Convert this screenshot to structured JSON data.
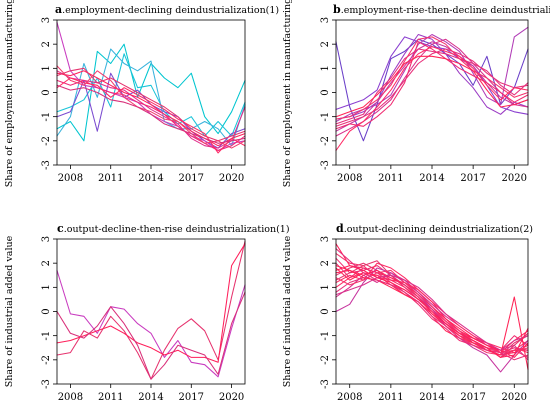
{
  "chart_data": [
    {
      "type": "line",
      "letter": "a",
      "title": ".employment-declining deindustrialization(1)",
      "ylabel": "Share of employment in manufacturing",
      "xticks": [
        "2008",
        "2011",
        "2014",
        "2017",
        "2020"
      ],
      "yticks": [
        "-3",
        "-2",
        "-1",
        "0",
        "1",
        "2",
        "3"
      ],
      "xlim": [
        2007,
        2021
      ],
      "ylim": [
        -3,
        3
      ],
      "x": [
        2007,
        2008,
        2009,
        2010,
        2011,
        2012,
        2013,
        2014,
        2015,
        2016,
        2017,
        2018,
        2019,
        2020,
        2021
      ],
      "series": [
        {
          "color": "#00c5cf",
          "values": [
            -1.5,
            -1.2,
            -2.0,
            1.7,
            1.2,
            2.0,
            -0.2,
            1.2,
            0.6,
            0.2,
            0.8,
            -1.0,
            -1.7,
            -0.8,
            0.5
          ]
        },
        {
          "color": "#19c4d8",
          "values": [
            -0.8,
            -0.6,
            -0.3,
            0.6,
            -0.6,
            1.6,
            0.2,
            0.3,
            -0.8,
            -1.3,
            -1.0,
            -1.8,
            -1.2,
            -1.8,
            -0.4
          ]
        },
        {
          "color": "#3ab3dc",
          "values": [
            -1.8,
            -1.0,
            1.2,
            -0.2,
            1.8,
            1.2,
            0.9,
            1.3,
            -1.2,
            -1.5,
            -1.5,
            -1.2,
            -1.5,
            -2.2,
            -0.5
          ]
        },
        {
          "color": "#7a4bd0",
          "values": [
            -1.0,
            -0.8,
            0.5,
            -1.6,
            0.8,
            -0.2,
            0.1,
            -0.5,
            -0.8,
            -1.0,
            -1.6,
            -2.0,
            -2.3,
            -1.7,
            -1.5
          ]
        },
        {
          "color": "#c93cc0",
          "values": [
            2.9,
            0.9,
            0.3,
            0.2,
            0.0,
            -0.2,
            -0.4,
            -0.9,
            -1.2,
            -1.4,
            -1.8,
            -2.0,
            -2.4,
            -2.1,
            -2.0
          ]
        },
        {
          "color": "#e0308c",
          "values": [
            0.9,
            0.6,
            0.5,
            0.4,
            0.2,
            0.1,
            -0.3,
            -0.7,
            -1.0,
            -1.3,
            -1.9,
            -2.2,
            -2.3,
            -2.0,
            -0.6
          ]
        },
        {
          "color": "#ff1f5a",
          "values": [
            0.8,
            0.7,
            0.9,
            0.6,
            0.3,
            0.0,
            -0.2,
            -0.5,
            -0.9,
            -1.2,
            -1.6,
            -1.9,
            -2.2,
            -1.9,
            -1.7
          ]
        },
        {
          "color": "#f0287a",
          "values": [
            0.5,
            0.3,
            0.5,
            0.2,
            0.0,
            -0.1,
            -0.4,
            -0.6,
            -0.9,
            -1.4,
            -1.8,
            -2.1,
            -2.4,
            -2.2,
            -1.8
          ]
        },
        {
          "color": "#e6336e",
          "values": [
            0.7,
            0.9,
            1.0,
            0.4,
            0.6,
            0.3,
            0.0,
            -0.3,
            -0.6,
            -1.0,
            -1.5,
            -1.8,
            -2.0,
            -1.8,
            -1.6
          ]
        },
        {
          "color": "#ff2a64",
          "values": [
            0.2,
            0.6,
            0.4,
            0.3,
            -0.2,
            0.2,
            -0.1,
            -0.4,
            -0.7,
            -1.1,
            -1.4,
            -1.7,
            -2.5,
            -1.9,
            -2.2
          ]
        },
        {
          "color": "#f23c6e",
          "values": [
            1.1,
            0.5,
            0.3,
            0.9,
            0.5,
            -0.2,
            -0.6,
            -0.8,
            -1.1,
            -1.2,
            -1.7,
            -2.1,
            -2.0,
            -2.3,
            -2.0
          ]
        },
        {
          "color": "#d9307a",
          "values": [
            0.3,
            0.1,
            0.2,
            0.0,
            -0.3,
            -0.4,
            -0.6,
            -0.9,
            -1.3,
            -1.5,
            -1.7,
            -1.9,
            -2.1,
            -2.0,
            -1.9
          ]
        }
      ]
    },
    {
      "type": "line",
      "letter": "b",
      "title": ".employment-rise-then-decline deindustrialization (2)",
      "ylabel": "Share of employment in manufacturing",
      "xticks": [
        "2008",
        "2011",
        "2014",
        "2017",
        "2020"
      ],
      "yticks": [
        "-3",
        "-2",
        "-1",
        "0",
        "1",
        "2",
        "3"
      ],
      "xlim": [
        2007,
        2021
      ],
      "ylim": [
        -3,
        3
      ],
      "x": [
        2007,
        2008,
        2009,
        2010,
        2011,
        2012,
        2013,
        2014,
        2015,
        2016,
        2017,
        2018,
        2019,
        2020,
        2021
      ],
      "series": [
        {
          "color": "#6a3fc8",
          "values": [
            2.1,
            -0.6,
            -2.0,
            -0.5,
            1.4,
            1.7,
            2.2,
            2.0,
            1.6,
            1.2,
            0.3,
            1.5,
            -0.5,
            0.2,
            1.8
          ]
        },
        {
          "color": "#8a3fd0",
          "values": [
            -0.7,
            -0.5,
            -0.3,
            0.1,
            1.5,
            2.3,
            2.1,
            1.9,
            1.8,
            1.4,
            1.1,
            0.3,
            -0.6,
            -0.8,
            -0.9
          ]
        },
        {
          "color": "#9b3bc4",
          "values": [
            -1.1,
            -1.0,
            -0.8,
            -0.4,
            0.7,
            1.6,
            2.4,
            2.2,
            1.6,
            0.8,
            0.2,
            -0.6,
            -0.9,
            -0.4,
            -0.6
          ]
        },
        {
          "color": "#b13cb6",
          "values": [
            -1.2,
            -0.9,
            -0.7,
            -0.5,
            -0.1,
            0.9,
            2.0,
            2.4,
            2.1,
            1.7,
            0.8,
            -0.2,
            -0.5,
            2.3,
            2.7
          ]
        },
        {
          "color": "#c7359f",
          "values": [
            -1.6,
            -1.3,
            -1.0,
            -0.4,
            0.4,
            1.1,
            1.8,
            2.1,
            1.9,
            1.5,
            1.1,
            0.4,
            -0.2,
            -0.5,
            -0.3
          ]
        },
        {
          "color": "#d8318c",
          "values": [
            -1.8,
            -1.5,
            -1.2,
            -0.8,
            -0.3,
            0.6,
            1.4,
            2.0,
            2.2,
            1.8,
            1.2,
            0.6,
            0.0,
            -0.5,
            -0.6
          ]
        },
        {
          "color": "#e62e7c",
          "values": [
            -1.3,
            -1.1,
            -0.9,
            0.0,
            0.6,
            1.4,
            1.8,
            1.7,
            1.6,
            1.4,
            1.2,
            0.9,
            0.3,
            -0.1,
            0.4
          ]
        },
        {
          "color": "#f02b70",
          "values": [
            -1.5,
            -1.3,
            -1.4,
            -1.0,
            -0.5,
            0.4,
            2.1,
            1.8,
            1.4,
            1.0,
            0.7,
            0.4,
            0.0,
            -0.4,
            -0.1
          ]
        },
        {
          "color": "#ff2a64",
          "values": [
            -2.4,
            -1.6,
            -1.2,
            -0.6,
            0.1,
            1.0,
            1.6,
            1.9,
            1.7,
            1.5,
            1.0,
            0.3,
            -0.3,
            0.2,
            0.1
          ]
        },
        {
          "color": "#f5336c",
          "values": [
            -1.1,
            -1.0,
            -0.7,
            -0.3,
            0.3,
            1.3,
            2.2,
            2.3,
            2.0,
            1.4,
            0.9,
            0.6,
            0.2,
            -0.2,
            0.0
          ]
        },
        {
          "color": "#e8307a",
          "values": [
            -1.4,
            -1.2,
            -1.0,
            -0.7,
            -0.2,
            0.5,
            1.2,
            1.6,
            1.8,
            1.6,
            1.3,
            0.8,
            0.4,
            0.2,
            0.3
          ]
        },
        {
          "color": "#ff2456",
          "values": [
            -1.0,
            -0.8,
            -0.6,
            -0.1,
            0.5,
            1.2,
            1.5,
            1.5,
            1.4,
            1.2,
            0.9,
            0.1,
            -0.6,
            -0.5,
            -0.3
          ]
        }
      ]
    },
    {
      "type": "line",
      "letter": "c",
      "title": ".output-decline-then-rise deindustrialization(1)",
      "ylabel": "Share of industrial added value",
      "xticks": [
        "2008",
        "2011",
        "2014",
        "2017",
        "2020"
      ],
      "yticks": [
        "-3",
        "-2",
        "-1",
        "0",
        "1",
        "2",
        "3"
      ],
      "xlim": [
        2007,
        2021
      ],
      "ylim": [
        -3,
        3
      ],
      "x": [
        2007,
        2008,
        2009,
        2010,
        2011,
        2012,
        2013,
        2014,
        2015,
        2016,
        2017,
        2018,
        2019,
        2020,
        2021
      ],
      "series": [
        {
          "color": "#c93cc0",
          "values": [
            1.7,
            -0.1,
            -0.2,
            -0.9,
            0.2,
            0.1,
            -0.5,
            -0.9,
            -1.9,
            -1.2,
            -2.1,
            -2.2,
            -2.7,
            -0.7,
            1.1
          ]
        },
        {
          "color": "#e6336e",
          "values": [
            -1.8,
            -1.7,
            -0.8,
            -1.1,
            -0.2,
            -0.8,
            -1.7,
            -2.8,
            -1.6,
            -0.7,
            -0.3,
            -0.8,
            -2.0,
            0.6,
            2.9
          ]
        },
        {
          "color": "#ff1f5a",
          "values": [
            -1.3,
            -1.2,
            -1.0,
            -0.8,
            -0.6,
            -0.9,
            -1.3,
            -1.5,
            -1.8,
            -1.6,
            -1.9,
            -1.9,
            -2.1,
            1.9,
            2.8
          ]
        },
        {
          "color": "#d9307a",
          "values": [
            0.0,
            -0.9,
            -1.1,
            -0.6,
            0.2,
            -0.5,
            -1.4,
            -2.8,
            -2.2,
            -1.4,
            -1.6,
            -1.8,
            -2.6,
            -0.5,
            0.8
          ]
        }
      ]
    },
    {
      "type": "line",
      "letter": "d",
      "title": ".output-declining deindustrialization(2)",
      "ylabel": "Share of industrial added value",
      "xticks": [
        "2008",
        "2011",
        "2014",
        "2017",
        "2020"
      ],
      "yticks": [
        "-3",
        "-2",
        "-1",
        "0",
        "1",
        "2",
        "3"
      ],
      "xlim": [
        2007,
        2021
      ],
      "ylim": [
        -3,
        3
      ],
      "x": [
        2007,
        2008,
        2009,
        2010,
        2011,
        2012,
        2013,
        2014,
        2015,
        2016,
        2017,
        2018,
        2019,
        2020,
        2021
      ],
      "series": [
        {
          "color": "#ff1f5a",
          "values": [
            2.8,
            1.9,
            1.8,
            1.6,
            1.4,
            1.1,
            0.6,
            0.1,
            -0.5,
            -0.9,
            -1.1,
            -1.4,
            -1.7,
            -1.2,
            -0.8
          ]
        },
        {
          "color": "#f02b70",
          "values": [
            2.2,
            1.6,
            1.7,
            1.9,
            1.5,
            1.0,
            0.5,
            0.0,
            -0.6,
            -1.0,
            -1.2,
            -1.5,
            -1.6,
            -1.0,
            -1.4
          ]
        },
        {
          "color": "#e6336e",
          "values": [
            1.5,
            1.8,
            2.0,
            1.7,
            1.3,
            1.2,
            0.8,
            0.2,
            -0.4,
            -0.8,
            -1.3,
            -1.6,
            -1.8,
            -1.3,
            -1.0
          ]
        },
        {
          "color": "#ff2a64",
          "values": [
            1.2,
            1.5,
            1.3,
            2.0,
            1.8,
            1.4,
            0.9,
            0.4,
            -0.3,
            -0.7,
            -1.1,
            -1.3,
            -1.7,
            -1.5,
            -1.7
          ]
        },
        {
          "color": "#d8318c",
          "values": [
            0.6,
            1.0,
            1.5,
            1.2,
            1.6,
            1.3,
            0.8,
            0.3,
            -0.2,
            -0.6,
            -1.0,
            -1.4,
            -1.6,
            -1.4,
            -2.0
          ]
        },
        {
          "color": "#ff2456",
          "values": [
            1.8,
            1.3,
            1.6,
            1.5,
            1.1,
            0.7,
            0.4,
            -0.2,
            -0.8,
            -1.1,
            -1.3,
            -1.5,
            -1.9,
            -1.6,
            -1.2
          ]
        },
        {
          "color": "#f5336c",
          "values": [
            2.4,
            2.0,
            1.9,
            1.4,
            1.3,
            1.0,
            0.6,
            -0.1,
            -0.5,
            -1.0,
            -1.4,
            -1.7,
            -1.8,
            -1.7,
            -1.5
          ]
        },
        {
          "color": "#c7359f",
          "values": [
            0.0,
            0.3,
            1.2,
            1.8,
            1.6,
            1.2,
            0.7,
            0.1,
            -0.6,
            -1.1,
            -1.5,
            -1.8,
            -2.5,
            -1.8,
            -1.2
          ]
        },
        {
          "color": "#e8307a",
          "values": [
            0.8,
            1.2,
            1.4,
            1.3,
            1.1,
            0.9,
            0.5,
            0.1,
            -0.4,
            -0.9,
            -1.2,
            -1.6,
            -1.7,
            -1.5,
            -1.6
          ]
        },
        {
          "color": "#ff1f5a",
          "values": [
            1.6,
            1.7,
            1.5,
            1.7,
            1.4,
            1.1,
            0.7,
            0.2,
            -0.3,
            -0.8,
            -1.1,
            -1.4,
            -1.6,
            -1.9,
            -1.3
          ]
        },
        {
          "color": "#f02b70",
          "values": [
            2.0,
            1.4,
            1.8,
            1.6,
            1.2,
            0.8,
            0.3,
            -0.3,
            -0.7,
            -1.2,
            -1.4,
            -1.6,
            -1.8,
            -1.6,
            -1.9
          ]
        },
        {
          "color": "#e6336e",
          "values": [
            1.3,
            1.6,
            1.9,
            2.1,
            1.5,
            1.1,
            0.6,
            0.0,
            -0.5,
            -0.9,
            -1.3,
            -1.5,
            -1.9,
            -1.4,
            -0.9
          ]
        },
        {
          "color": "#ff2a64",
          "values": [
            1.0,
            1.4,
            1.6,
            1.5,
            1.3,
            1.2,
            0.9,
            0.4,
            -0.1,
            -0.6,
            -1.0,
            -1.3,
            -1.5,
            -1.7,
            -1.4
          ]
        },
        {
          "color": "#ff2456",
          "values": [
            1.9,
            1.7,
            1.4,
            1.3,
            1.0,
            0.7,
            0.4,
            -0.1,
            -0.6,
            -1.0,
            -1.3,
            -1.6,
            -1.8,
            0.6,
            -2.4
          ]
        },
        {
          "color": "#f5336c",
          "values": [
            1.4,
            1.1,
            1.3,
            1.6,
            1.7,
            1.2,
            0.7,
            0.2,
            -0.4,
            -0.8,
            -1.2,
            -1.5,
            -1.7,
            -1.6,
            -1.6
          ]
        },
        {
          "color": "#d8318c",
          "values": [
            0.7,
            0.9,
            1.1,
            1.4,
            1.5,
            1.3,
            1.0,
            0.5,
            -0.1,
            -0.5,
            -0.9,
            -1.3,
            -1.6,
            -1.2,
            -1.0
          ]
        },
        {
          "color": "#e8307a",
          "values": [
            2.6,
            2.1,
            1.6,
            1.3,
            1.1,
            0.8,
            0.4,
            -0.2,
            -0.6,
            -1.1,
            -1.4,
            -1.6,
            -1.7,
            -2.0,
            -1.8
          ]
        },
        {
          "color": "#ff1f5a",
          "values": [
            1.7,
            1.9,
            1.7,
            1.4,
            1.2,
            0.9,
            0.5,
            0.0,
            -0.5,
            -0.9,
            -1.2,
            -1.5,
            -1.9,
            -1.8,
            -0.7
          ]
        }
      ]
    }
  ]
}
